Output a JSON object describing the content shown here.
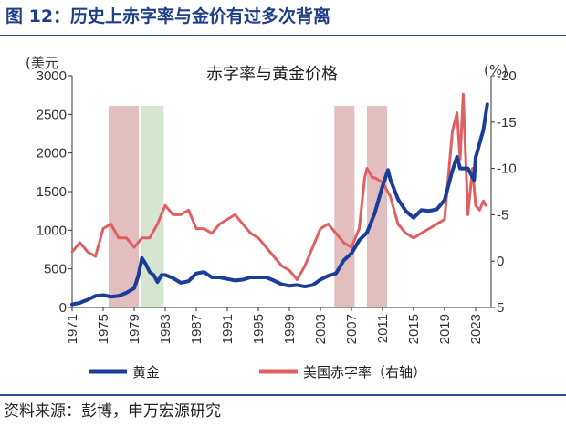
{
  "header": {
    "title": "图 12：历史上赤字率与金价有过多次背离"
  },
  "footer": {
    "source": "资料来源：彭博，申万宏源研究"
  },
  "colors": {
    "gold": "#1a3d99",
    "deficit": "#e06062",
    "shade_red": "#ddb3b3",
    "shade_green": "#cfe0c8",
    "axis": "#333333",
    "accent": "#1f3f86"
  },
  "chart_data": {
    "type": "line",
    "title": "赤字率与黄金价格",
    "left_axis": {
      "unit": "(美元",
      "range": [
        0,
        3000
      ],
      "ticks": [
        0,
        500,
        1000,
        1500,
        2000,
        2500,
        3000
      ]
    },
    "right_axis": {
      "unit": "(%)",
      "range": [
        5,
        -20
      ],
      "inverted": true,
      "ticks": [
        5,
        0,
        -5,
        -10,
        -15,
        -20
      ],
      "tick_labels": [
        "5",
        "0",
        "-5",
        "-10",
        "-15",
        "-20"
      ]
    },
    "x_axis": {
      "range": [
        1971,
        2025
      ],
      "ticks": [
        1971,
        1975,
        1979,
        1983,
        1987,
        1991,
        1995,
        1999,
        2003,
        2007,
        2011,
        2015,
        2019,
        2023
      ]
    },
    "shaded_periods": [
      {
        "start": 1975.7,
        "end": 1979.6,
        "color": "red"
      },
      {
        "start": 1979.8,
        "end": 1982.8,
        "color": "green"
      },
      {
        "start": 2004.8,
        "end": 2007.4,
        "color": "red"
      },
      {
        "start": 2009.0,
        "end": 2011.6,
        "color": "red"
      }
    ],
    "series": [
      {
        "name": "黄金",
        "axis": "left",
        "x": [
          1971,
          1972,
          1973,
          1974,
          1975,
          1976,
          1977,
          1978,
          1979,
          1979.5,
          1980,
          1980.5,
          1981,
          1981.5,
          1982,
          1982.5,
          1983,
          1984,
          1985,
          1986,
          1987,
          1988,
          1989,
          1990,
          1991,
          1992,
          1993,
          1994,
          1995,
          1996,
          1997,
          1998,
          1999,
          2000,
          2001,
          2002,
          2003,
          2004,
          2005,
          2006,
          2007,
          2008,
          2009,
          2010,
          2011,
          2011.7,
          2012,
          2013,
          2014,
          2015,
          2016,
          2017,
          2018,
          2019,
          2020,
          2020.6,
          2021,
          2022,
          2022.8,
          2023,
          2024,
          2024.5
        ],
        "y": [
          40,
          60,
          100,
          150,
          160,
          140,
          150,
          190,
          250,
          400,
          640,
          560,
          460,
          420,
          330,
          420,
          420,
          380,
          320,
          340,
          440,
          460,
          390,
          390,
          370,
          350,
          360,
          390,
          390,
          390,
          350,
          300,
          280,
          290,
          270,
          290,
          360,
          410,
          440,
          610,
          700,
          870,
          970,
          1220,
          1570,
          1780,
          1660,
          1400,
          1250,
          1160,
          1260,
          1250,
          1270,
          1390,
          1770,
          1950,
          1800,
          1800,
          1650,
          1940,
          2300,
          2630
        ]
      },
      {
        "name": "美国赤字率（右轴）",
        "axis": "right",
        "x": [
          1971,
          1972,
          1973,
          1974,
          1975,
          1976,
          1977,
          1978,
          1979,
          1980,
          1981,
          1982,
          1983,
          1984,
          1985,
          1986,
          1987,
          1988,
          1989,
          1990,
          1991,
          1992,
          1993,
          1994,
          1995,
          1996,
          1997,
          1998,
          1999,
          2000,
          2001,
          2002,
          2003,
          2004,
          2005,
          2006,
          2007,
          2008,
          2008.7,
          2009,
          2009.7,
          2010,
          2011,
          2012,
          2013,
          2014,
          2015,
          2016,
          2017,
          2018,
          2019,
          2020,
          2020.6,
          2021,
          2021.4,
          2022,
          2022.6,
          2023,
          2023.5,
          2024,
          2024.3
        ],
        "y": [
          -1,
          -2,
          -1,
          -0.5,
          -3.5,
          -4,
          -2.5,
          -2.5,
          -1.5,
          -2.5,
          -2.5,
          -4,
          -6,
          -5,
          -5,
          -5.5,
          -3.5,
          -3.5,
          -3,
          -4,
          -4.5,
          -5,
          -4,
          -3,
          -2.5,
          -1.5,
          -0.5,
          0.5,
          1,
          2,
          0.5,
          -1.5,
          -3.5,
          -4,
          -3,
          -2,
          -1.5,
          -3.5,
          -9,
          -10,
          -9,
          -9,
          -8.5,
          -7,
          -4,
          -3,
          -2.5,
          -3,
          -3.5,
          -4,
          -4.5,
          -14,
          -16,
          -11,
          -18,
          -5,
          -10,
          -6,
          -5.5,
          -6.5,
          -6
        ]
      }
    ],
    "legend": {
      "position": "bottom",
      "items": [
        "黄金",
        "美国赤字率（右轴）"
      ]
    }
  }
}
